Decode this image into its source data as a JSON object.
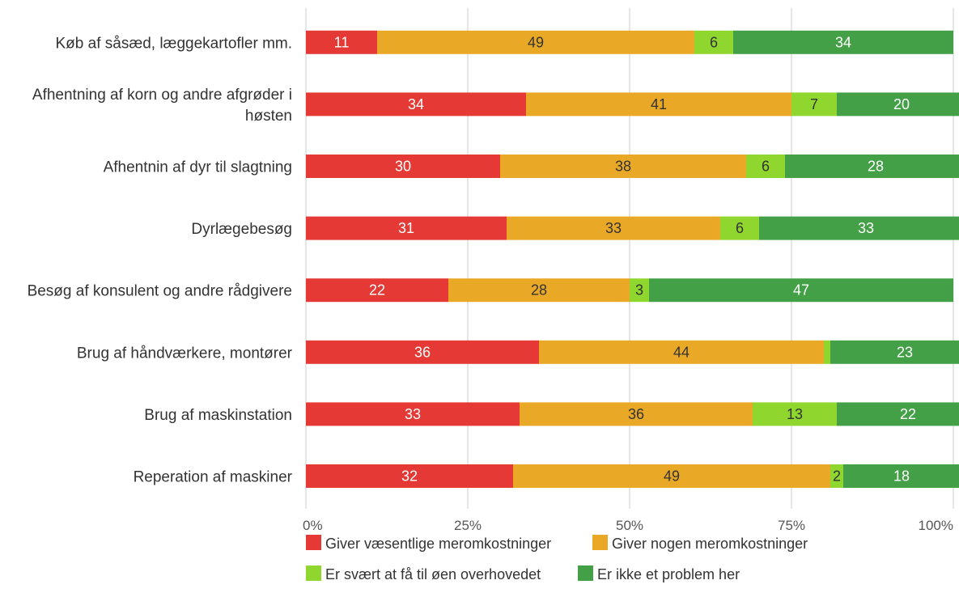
{
  "chart_data": {
    "type": "bar",
    "orientation": "horizontal",
    "stacked": true,
    "normalized_percent": true,
    "categories": [
      [
        "Køb af såsæd, læggekartofler mm."
      ],
      [
        "Afhentning af korn og andre afgrøder i",
        "høsten"
      ],
      [
        "Afhentnin af dyr til slagtning"
      ],
      [
        "Dyrlægebesøg"
      ],
      [
        "Besøg af konsulent og andre rådgivere"
      ],
      [
        "Brug af håndværkere, montører"
      ],
      [
        "Brug af maskinstation"
      ],
      [
        "Reperation af maskiner"
      ]
    ],
    "series": [
      {
        "name": "Giver væsentlige meromkostninger",
        "color": "#e53935",
        "label_color": "#ffffff",
        "values": [
          11,
          34,
          30,
          31,
          22,
          36,
          33,
          32
        ]
      },
      {
        "name": "Giver nogen meromkostninger",
        "color": "#e9a825",
        "label_color": "#333333",
        "values": [
          49,
          41,
          38,
          33,
          28,
          44,
          36,
          49
        ]
      },
      {
        "name": "Er svært at få til øen overhovedet",
        "color": "#8fd62f",
        "label_color": "#333333",
        "values": [
          6,
          7,
          6,
          6,
          3,
          1,
          13,
          2
        ],
        "data_labels": [
          "6",
          "7",
          "6",
          "6",
          "3",
          "",
          "13",
          "2"
        ]
      },
      {
        "name": "Er ikke et problem her",
        "color": "#43a047",
        "label_color": "#ffffff",
        "values": [
          34,
          20,
          28,
          33,
          47,
          23,
          22,
          18
        ]
      }
    ],
    "xlim": [
      0,
      100
    ],
    "x_ticks": [
      "0%",
      "25%",
      "50%",
      "75%",
      "100%"
    ],
    "gridlines": "vertical",
    "legend_position": "bottom"
  }
}
